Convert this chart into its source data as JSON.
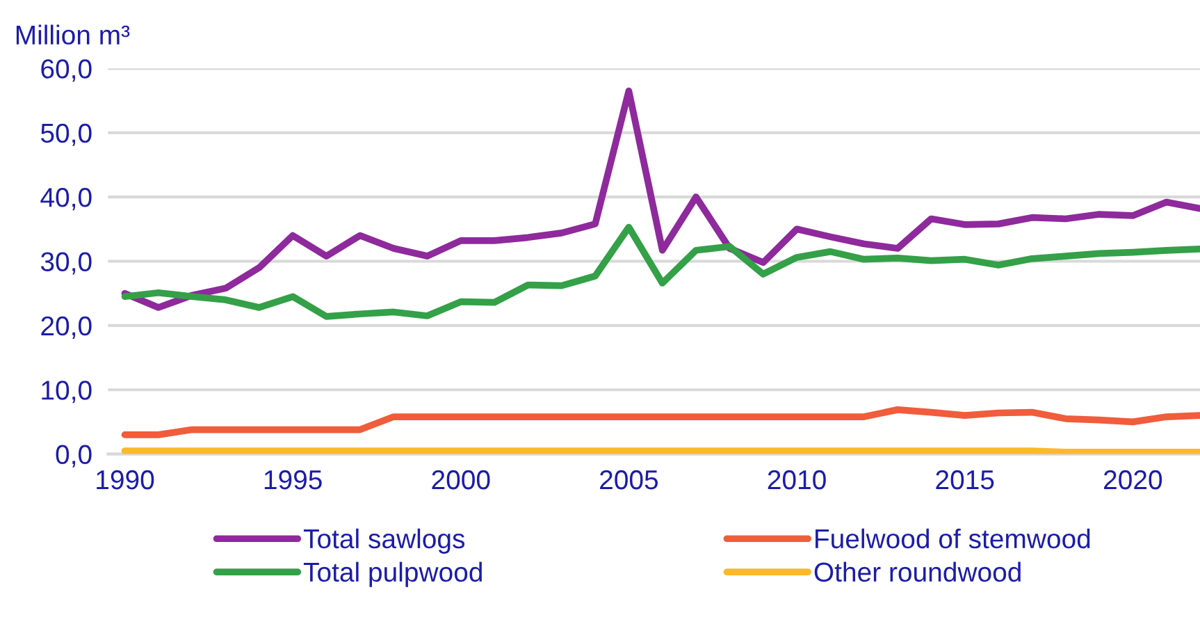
{
  "chart_data": {
    "type": "line",
    "ylabel": "Million m³",
    "x": [
      1990,
      1991,
      1992,
      1993,
      1994,
      1995,
      1996,
      1997,
      1998,
      1999,
      2000,
      2001,
      2002,
      2003,
      2004,
      2005,
      2006,
      2007,
      2008,
      2009,
      2010,
      2011,
      2012,
      2013,
      2014,
      2015,
      2016,
      2017,
      2018,
      2019,
      2020,
      2021,
      2022
    ],
    "series": [
      {
        "name": "Total sawlogs",
        "color": "#8e2a9c",
        "values": [
          25,
          22.8,
          24.7,
          25.8,
          29,
          34,
          30.8,
          34,
          32,
          30.8,
          33.2,
          33.2,
          33.7,
          34.4,
          35.8,
          56.5,
          31.7,
          40,
          32,
          29.8,
          35,
          33.8,
          32.7,
          32,
          36.6,
          35.7,
          35.8,
          36.8,
          36.6,
          37.3,
          37.1,
          39.2,
          38.2
        ]
      },
      {
        "name": "Total pulpwood",
        "color": "#34a048",
        "values": [
          24.5,
          25.1,
          24.5,
          24,
          22.8,
          24.5,
          21.4,
          21.8,
          22.1,
          21.5,
          23.7,
          23.6,
          26.3,
          26.2,
          27.7,
          35.3,
          26.6,
          31.7,
          32.3,
          28,
          30.6,
          31.5,
          30.3,
          30.5,
          30.1,
          30.3,
          29.4,
          30.4,
          30.8,
          31.2,
          31.4,
          31.7,
          31.9
        ]
      },
      {
        "name": "Fuelwood of stemwood",
        "color": "#f05c3c",
        "values": [
          3,
          3,
          3.8,
          3.8,
          3.8,
          3.8,
          3.8,
          3.8,
          5.8,
          5.8,
          5.8,
          5.8,
          5.8,
          5.8,
          5.8,
          5.8,
          5.8,
          5.8,
          5.8,
          5.8,
          5.8,
          5.8,
          5.8,
          6.9,
          6.5,
          6,
          6.4,
          6.5,
          5.5,
          5.3,
          5,
          5.8,
          6
        ]
      },
      {
        "name": "Other roundwood",
        "color": "#fbb92b",
        "values": [
          0.5,
          0.5,
          0.5,
          0.5,
          0.5,
          0.5,
          0.5,
          0.5,
          0.5,
          0.5,
          0.5,
          0.5,
          0.5,
          0.5,
          0.5,
          0.5,
          0.5,
          0.5,
          0.5,
          0.5,
          0.5,
          0.5,
          0.5,
          0.5,
          0.5,
          0.5,
          0.5,
          0.5,
          0.3,
          0.3,
          0.3,
          0.3,
          0.3
        ]
      }
    ],
    "xlim": [
      1989.5,
      2022
    ],
    "xticks": [
      1990,
      1995,
      2000,
      2005,
      2010,
      2015,
      2020
    ],
    "ylim": [
      0,
      60
    ],
    "yticks": [
      {
        "value": 0,
        "label": "0,0"
      },
      {
        "value": 10,
        "label": "10,0"
      },
      {
        "value": 20,
        "label": "20,0"
      },
      {
        "value": 30,
        "label": "30,0"
      },
      {
        "value": 40,
        "label": "40,0"
      },
      {
        "value": 50,
        "label": "50,0"
      },
      {
        "value": 60,
        "label": "60,0"
      }
    ],
    "grid": "y",
    "legend": "bottom",
    "marker": "none",
    "line_style": "solid"
  }
}
